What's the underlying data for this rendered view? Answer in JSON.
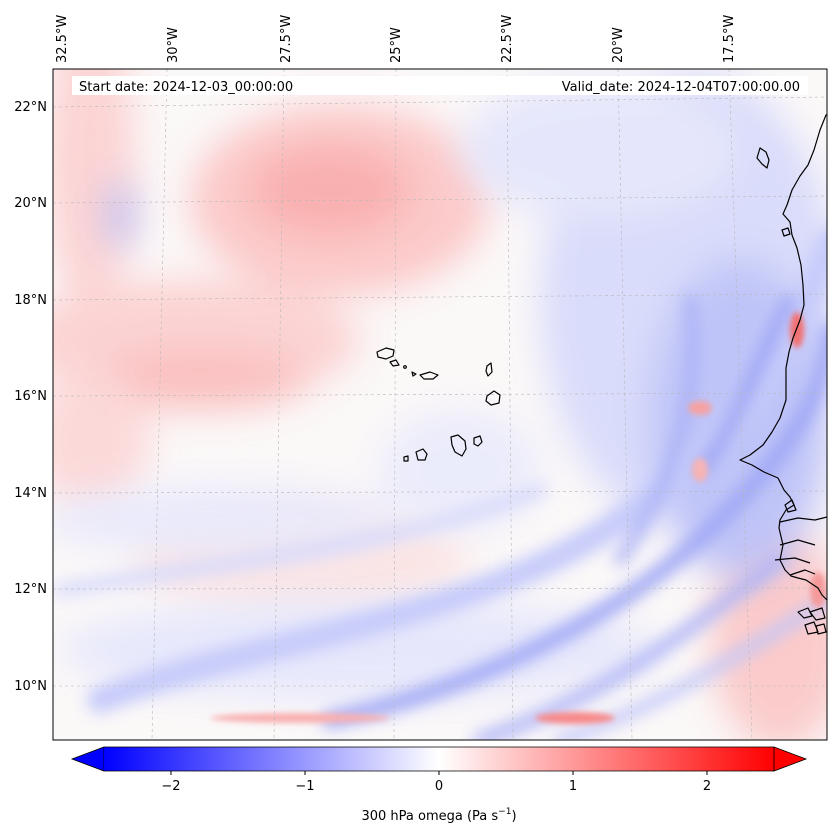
{
  "map": {
    "start_label": "Start date: 2024-12-03_00:00:00",
    "valid_label": "Valid_date: 2024-12-04T07:00:00.00",
    "lon_labels": [
      "32.5°W",
      "30°W",
      "27.5°W",
      "25°W",
      "22.5°W",
      "20°W",
      "17.5°W"
    ],
    "lat_labels": [
      "22°N",
      "20°N",
      "18°N",
      "16°N",
      "14°N",
      "12°N",
      "10°N"
    ]
  },
  "colorbar": {
    "label": "300 hPa omega (Pa s",
    "label_sup": "−1",
    "label_end": ")",
    "ticks": [
      "−2",
      "−1",
      "0",
      "1",
      "2"
    ],
    "min_value": -2.7,
    "max_value": 2.7,
    "colors": {
      "negative": "#0000ff",
      "zero": "#ffffff",
      "positive": "#ff0000"
    }
  },
  "colors": {
    "coastline": "#000000",
    "gridline": "#b8b8b8",
    "frame": "#000000"
  }
}
